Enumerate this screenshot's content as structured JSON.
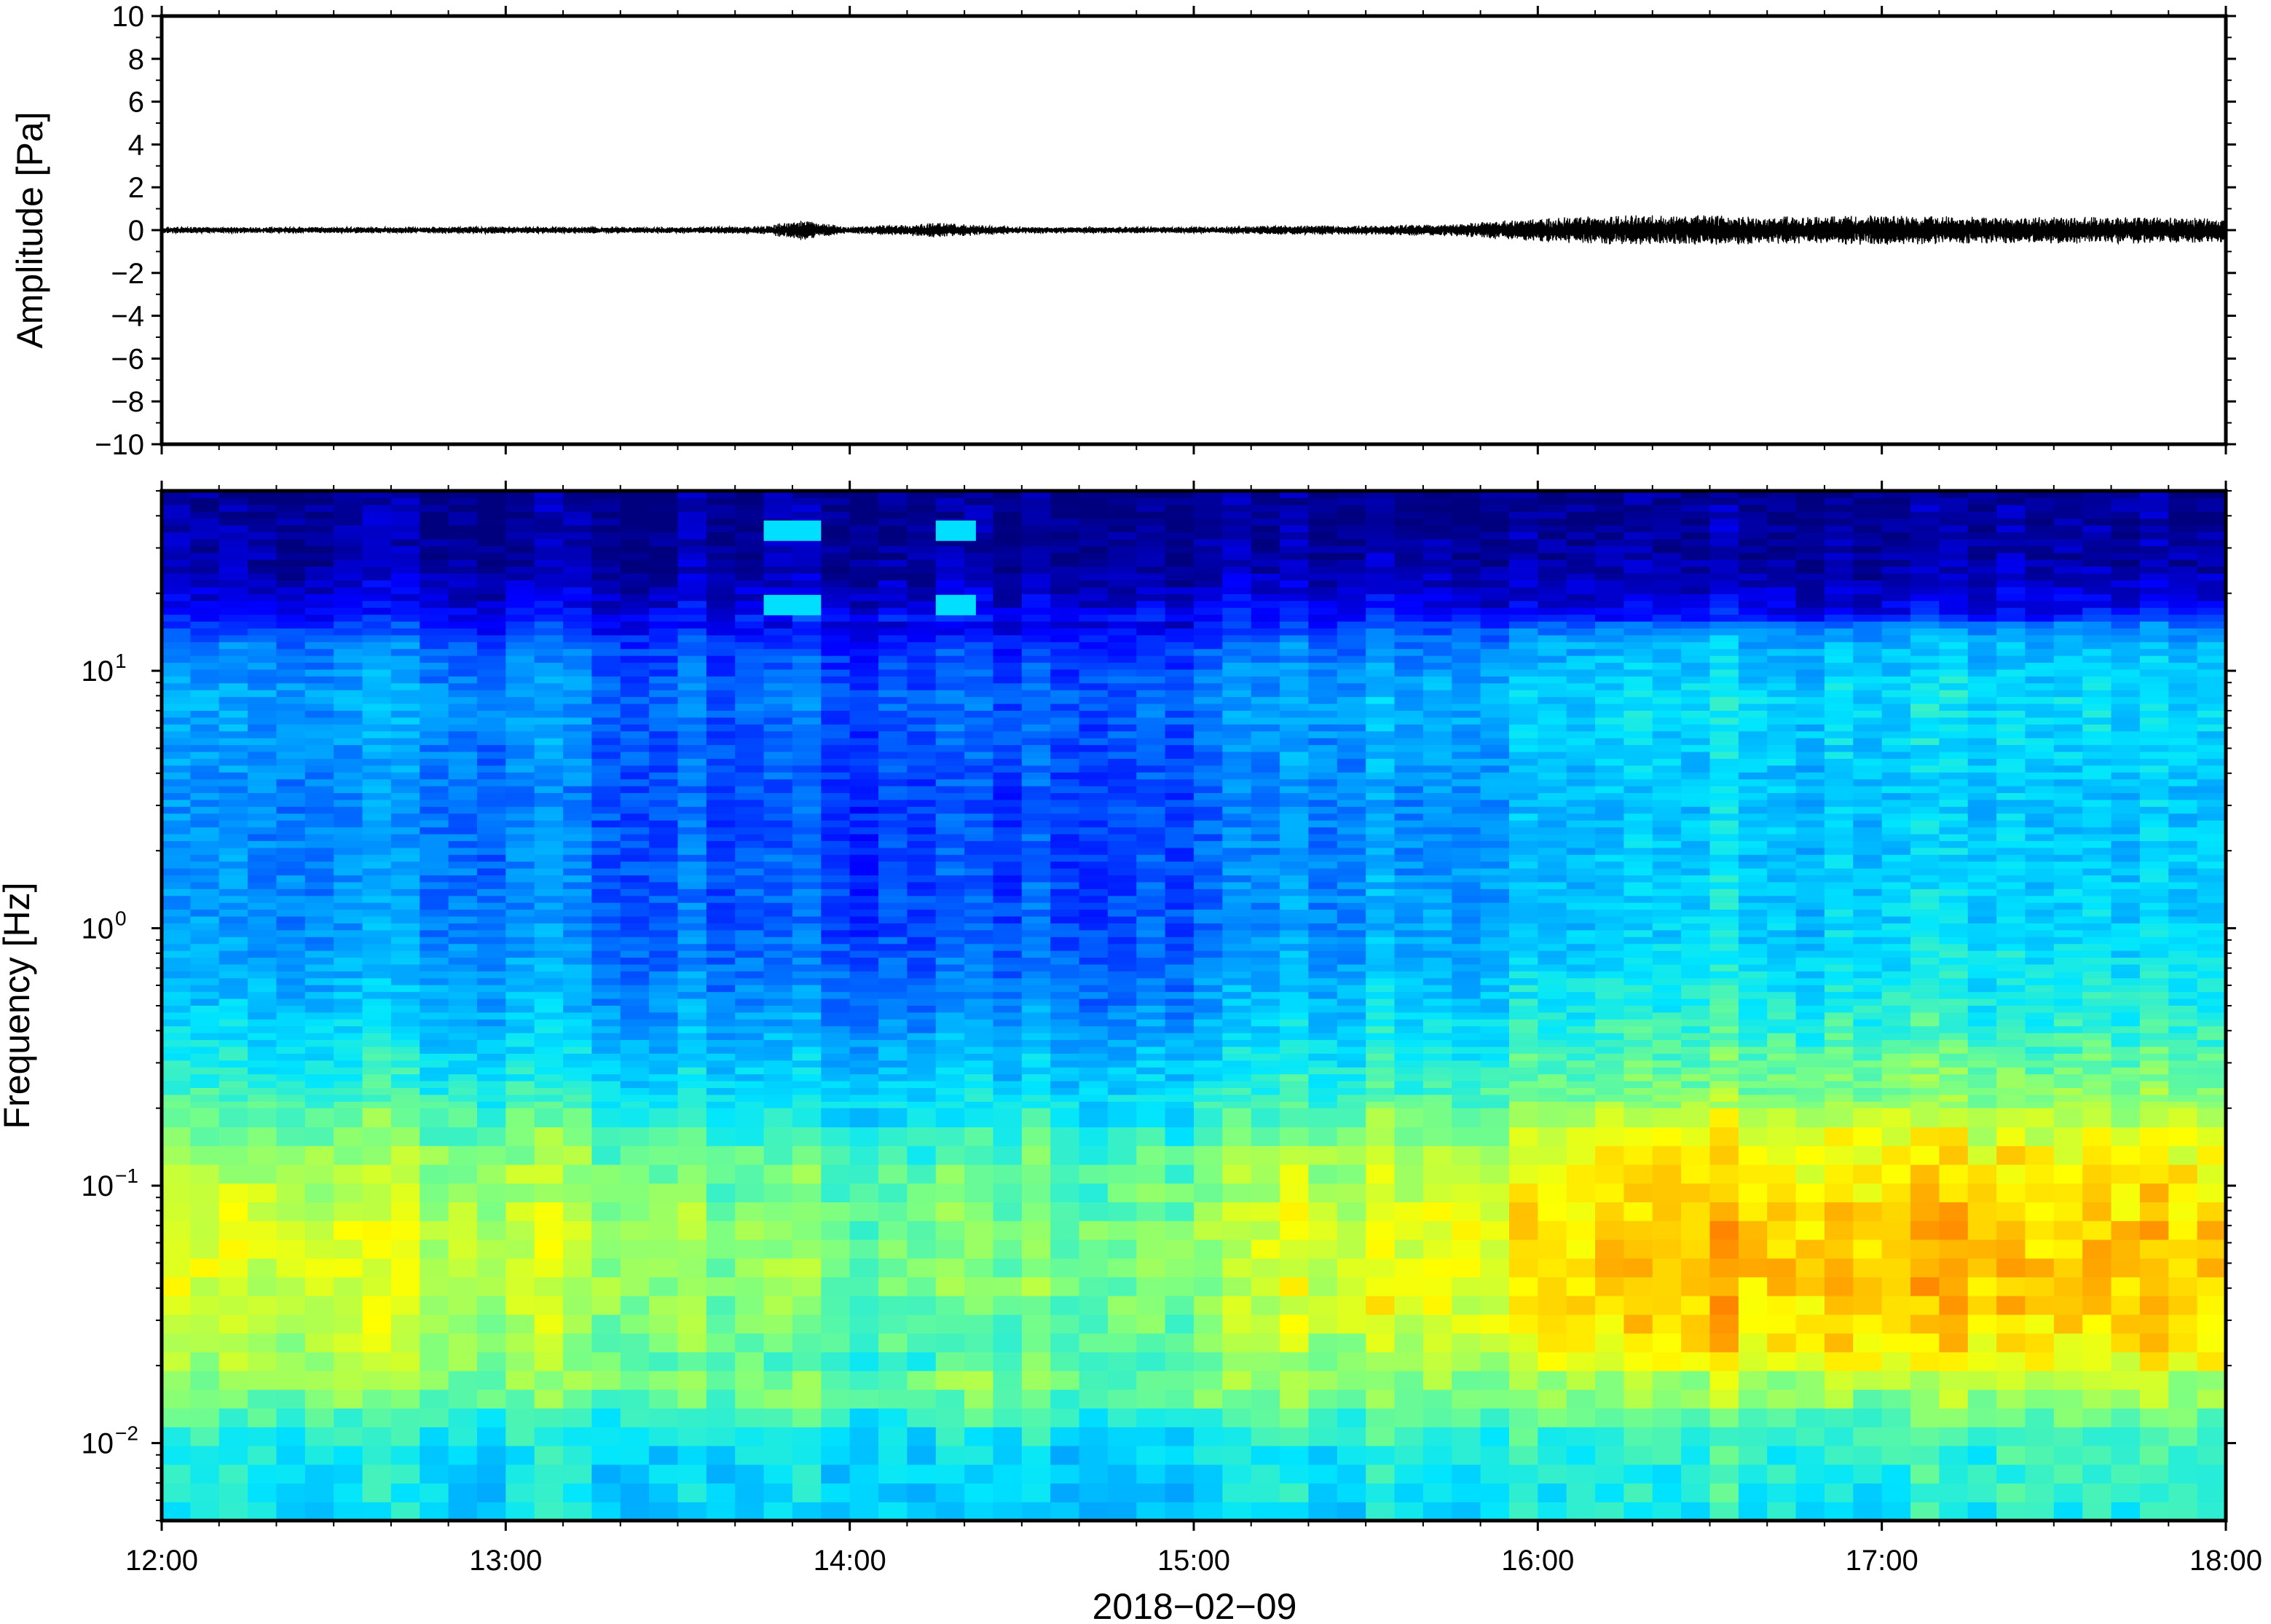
{
  "figure": {
    "date_label": "2018−02−09"
  },
  "chart_data": [
    {
      "type": "line",
      "panel": "waveform",
      "ylabel": "Amplitude [Pa]",
      "xlabel": "",
      "ylim": [
        -10,
        10
      ],
      "y_ticks": [
        10,
        8,
        6,
        4,
        2,
        0,
        -2,
        -4,
        -6,
        -8,
        -10
      ],
      "y_tick_labels": [
        "10",
        "8",
        "6",
        "4",
        "2",
        "0",
        "−2",
        "−4",
        "−6",
        "−8",
        "−10"
      ],
      "x_range": [
        "12:00",
        "18:00"
      ],
      "grid": false,
      "series": [
        {
          "color": "#000000",
          "x_hours": [
            12.0,
            12.25,
            12.5,
            12.75,
            13.0,
            13.25,
            13.5,
            13.75,
            13.85,
            14.0,
            14.25,
            14.5,
            14.75,
            15.0,
            15.25,
            15.5,
            15.75,
            16.0,
            16.25,
            16.5,
            16.75,
            17.0,
            17.25,
            17.5,
            17.75,
            18.0
          ],
          "envelope_pa": [
            0.1,
            0.1,
            0.1,
            0.1,
            0.12,
            0.1,
            0.1,
            0.12,
            0.35,
            0.1,
            0.25,
            0.1,
            0.1,
            0.1,
            0.15,
            0.15,
            0.2,
            0.4,
            0.5,
            0.5,
            0.45,
            0.5,
            0.45,
            0.45,
            0.45,
            0.4
          ]
        }
      ]
    },
    {
      "type": "heatmap",
      "panel": "spectrogram",
      "ylabel": "Frequency [Hz]",
      "xlabel": "2018−02−09",
      "y_scale": "log",
      "ylim": [
        0.005,
        50
      ],
      "y_ticks": [
        0.01,
        0.1,
        1,
        10
      ],
      "y_tick_labels": [
        {
          "base": "10",
          "exp": "−2"
        },
        {
          "base": "10",
          "exp": "−1"
        },
        {
          "base": "10",
          "exp": "0"
        },
        {
          "base": "10",
          "exp": "1"
        }
      ],
      "x_ticks": [
        12,
        13,
        14,
        15,
        16,
        17,
        18
      ],
      "x_tick_labels": [
        "12:00",
        "13:00",
        "14:00",
        "15:00",
        "16:00",
        "17:00",
        "18:00"
      ],
      "colormap": [
        "#00007f",
        "#0000ff",
        "#0080ff",
        "#00e5ff",
        "#7fff7f",
        "#ffff00",
        "#ff8000",
        "#e00000"
      ],
      "grid": false,
      "time_profile_hours": [
        12.0,
        13.0,
        13.5,
        14.0,
        14.5,
        15.0,
        15.3,
        15.8,
        16.0,
        16.5,
        17.0,
        17.5,
        18.0
      ],
      "time_profile_activity": [
        0.55,
        0.5,
        0.35,
        0.25,
        0.3,
        0.3,
        0.55,
        0.6,
        0.8,
        0.85,
        0.85,
        0.8,
        0.8
      ],
      "features": [
        {
          "kind": "tone",
          "x_start": "13:45",
          "x_end": "13:55",
          "freq_hz": [
            35,
            18
          ]
        },
        {
          "kind": "tone",
          "x_start": "14:15",
          "x_end": "14:22",
          "freq_hz": [
            35,
            18
          ]
        }
      ]
    }
  ]
}
